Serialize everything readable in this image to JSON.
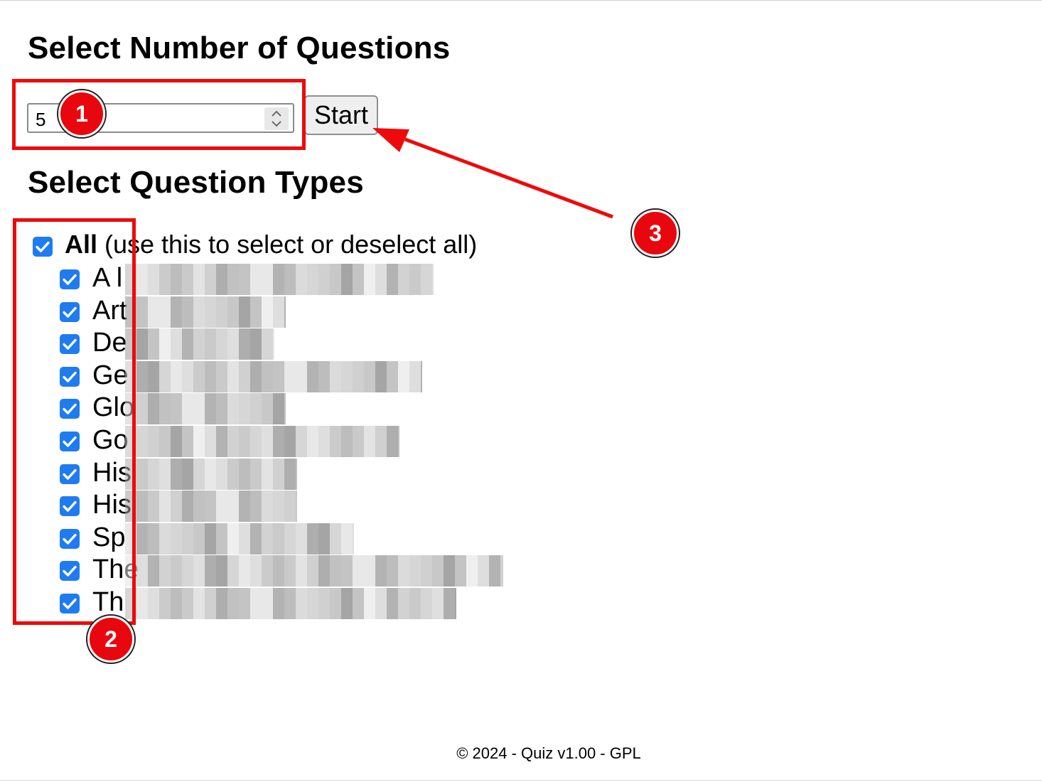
{
  "headings": {
    "number_of_questions": "Select Number of Questions",
    "question_types": "Select Question Types"
  },
  "quantity_input": {
    "value": "5"
  },
  "start_button": {
    "label": "Start"
  },
  "all_option": {
    "label_bold": "All",
    "label_rest": " (use this to select or deselect all)",
    "checked": true
  },
  "question_types": [
    {
      "label_visible": "A l",
      "checked": true
    },
    {
      "label_visible": "Art",
      "checked": true
    },
    {
      "label_visible": "De",
      "checked": true
    },
    {
      "label_visible": "Ge",
      "checked": true
    },
    {
      "label_visible": "Glo",
      "checked": true
    },
    {
      "label_visible": "Go",
      "checked": true
    },
    {
      "label_visible": "His",
      "checked": true
    },
    {
      "label_visible": "His",
      "checked": true
    },
    {
      "label_visible": "Sp",
      "checked": true
    },
    {
      "label_visible": "The",
      "checked": true
    },
    {
      "label_visible": "Th",
      "checked": true
    }
  ],
  "annotations": [
    {
      "number": "1"
    },
    {
      "number": "2"
    },
    {
      "number": "3"
    }
  ],
  "footer": {
    "text": "© 2024 - Quiz v1.00 - GPL"
  },
  "colors": {
    "checkbox": "#1f7cf0",
    "annotation_red": "#e8070f",
    "button_bg": "#efefef"
  }
}
